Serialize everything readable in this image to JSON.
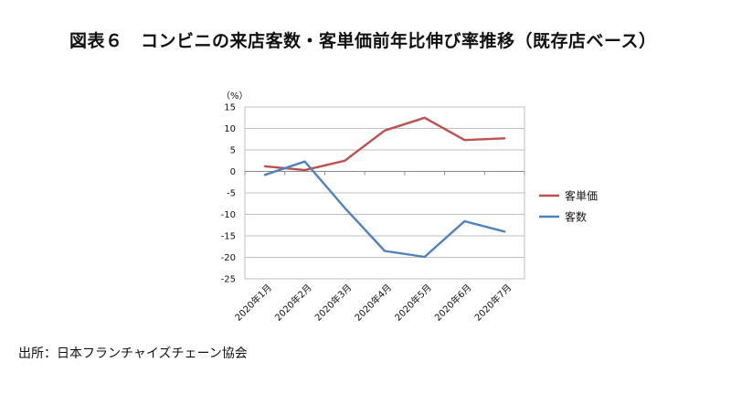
{
  "title": "図表６　コンビニの来店客数・客単価前年比伸び率推移（既存店ベース）",
  "source": "出所：日本フランチャイズチェーン協会",
  "chart_data": {
    "type": "line",
    "title": "図表６　コンビニの来店客数・客単価前年比伸び率推移（既存店ベース）",
    "ylabel": "（%）",
    "xlabel": "",
    "categories": [
      "2020年1月",
      "2020年2月",
      "2020年3月",
      "2020年4月",
      "2020年5月",
      "2020年6月",
      "2020年7月"
    ],
    "ylim": [
      -25,
      15
    ],
    "yticks": [
      15,
      10,
      5,
      0,
      -5,
      -10,
      -15,
      -20,
      -25
    ],
    "grid": true,
    "legend_position": "right",
    "series": [
      {
        "name": "客単価",
        "color": "#c0504d",
        "values": [
          1.2,
          0.3,
          2.5,
          9.5,
          12.5,
          7.3,
          7.7
        ]
      },
      {
        "name": "客数",
        "color": "#4f81bd",
        "values": [
          -0.8,
          2.3,
          -8.5,
          -18.5,
          -19.9,
          -11.6,
          -14.0
        ]
      }
    ]
  }
}
